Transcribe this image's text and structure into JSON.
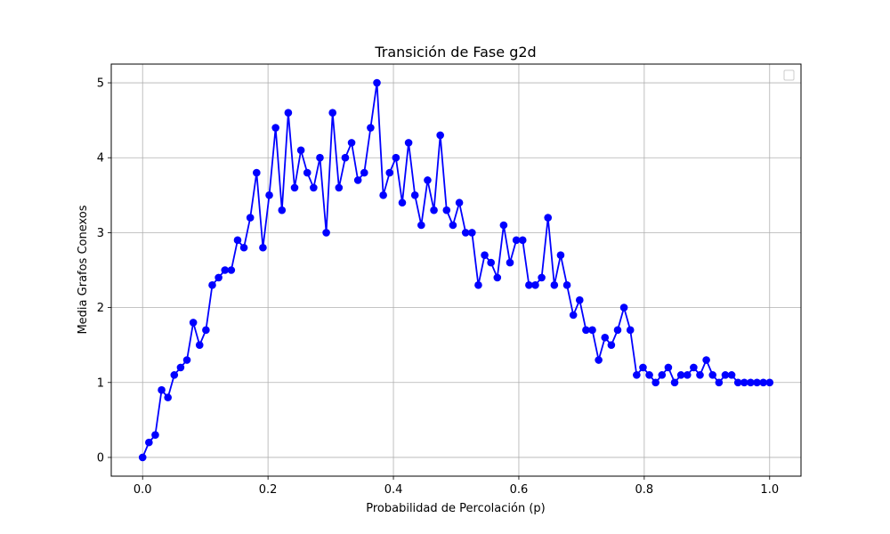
{
  "chart_data": {
    "type": "line",
    "title": "Transición de Fase g2d",
    "xlabel": "Probabilidad de Percolación (p)",
    "ylabel": "Media Grafos Conexos",
    "xlim": [
      -0.05,
      1.05
    ],
    "ylim": [
      -0.25,
      5.25
    ],
    "xticks": [
      0.0,
      0.2,
      0.4,
      0.6,
      0.8,
      1.0
    ],
    "xtick_labels": [
      "0.0",
      "0.2",
      "0.4",
      "0.6",
      "0.8",
      "1.0"
    ],
    "yticks": [
      0,
      1,
      2,
      3,
      4,
      5
    ],
    "ytick_labels": [
      "0",
      "1",
      "2",
      "3",
      "4",
      "5"
    ],
    "grid": true,
    "legend": "upper-right (empty)",
    "color": "#0000ff",
    "x": [
      0.0,
      0.0101,
      0.0202,
      0.0303,
      0.0404,
      0.0505,
      0.0606,
      0.0707,
      0.0808,
      0.0909,
      0.101,
      0.1111,
      0.1212,
      0.1313,
      0.1414,
      0.1515,
      0.1616,
      0.1717,
      0.1818,
      0.1919,
      0.202,
      0.2121,
      0.2222,
      0.2323,
      0.2424,
      0.2525,
      0.2626,
      0.2727,
      0.2828,
      0.2929,
      0.303,
      0.3131,
      0.3232,
      0.3333,
      0.3434,
      0.3535,
      0.3636,
      0.3737,
      0.3838,
      0.3939,
      0.404,
      0.4141,
      0.4242,
      0.4343,
      0.4444,
      0.4545,
      0.4646,
      0.4747,
      0.4848,
      0.4949,
      0.5051,
      0.5152,
      0.5253,
      0.5354,
      0.5455,
      0.5556,
      0.5657,
      0.5758,
      0.5859,
      0.596,
      0.6061,
      0.6162,
      0.6263,
      0.6364,
      0.6465,
      0.6566,
      0.6667,
      0.6768,
      0.6869,
      0.697,
      0.7071,
      0.7172,
      0.7273,
      0.7374,
      0.7475,
      0.7576,
      0.7677,
      0.7778,
      0.7879,
      0.798,
      0.8081,
      0.8182,
      0.8283,
      0.8384,
      0.8485,
      0.8586,
      0.8687,
      0.8788,
      0.8889,
      0.899,
      0.9091,
      0.9192,
      0.9293,
      0.9394,
      0.9495,
      0.9596,
      0.9697,
      0.9798,
      0.9899,
      1.0
    ],
    "y": [
      0.0,
      0.2,
      0.3,
      0.9,
      0.8,
      1.1,
      1.2,
      1.3,
      1.8,
      1.5,
      1.7,
      2.3,
      2.4,
      2.5,
      2.5,
      2.9,
      2.8,
      3.2,
      3.8,
      2.8,
      3.5,
      4.4,
      3.3,
      4.6,
      3.6,
      4.1,
      3.8,
      3.6,
      4.0,
      3.0,
      4.6,
      3.6,
      4.0,
      4.2,
      3.7,
      3.8,
      4.4,
      5.0,
      3.5,
      3.8,
      4.0,
      3.4,
      4.2,
      3.5,
      3.1,
      3.7,
      3.3,
      4.3,
      3.3,
      3.1,
      3.4,
      3.0,
      3.0,
      2.3,
      2.7,
      2.6,
      2.4,
      3.1,
      2.6,
      2.9,
      2.9,
      2.3,
      2.3,
      2.4,
      3.2,
      2.3,
      2.7,
      2.3,
      1.9,
      2.1,
      1.7,
      1.7,
      1.3,
      1.6,
      1.5,
      1.7,
      2.0,
      1.7,
      1.1,
      1.2,
      1.1,
      1.0,
      1.1,
      1.2,
      1.0,
      1.1,
      1.1,
      1.2,
      1.1,
      1.3,
      1.1,
      1.0,
      1.1,
      1.1,
      1.0,
      1.0,
      1.0,
      1.0,
      1.0,
      1.0
    ]
  }
}
